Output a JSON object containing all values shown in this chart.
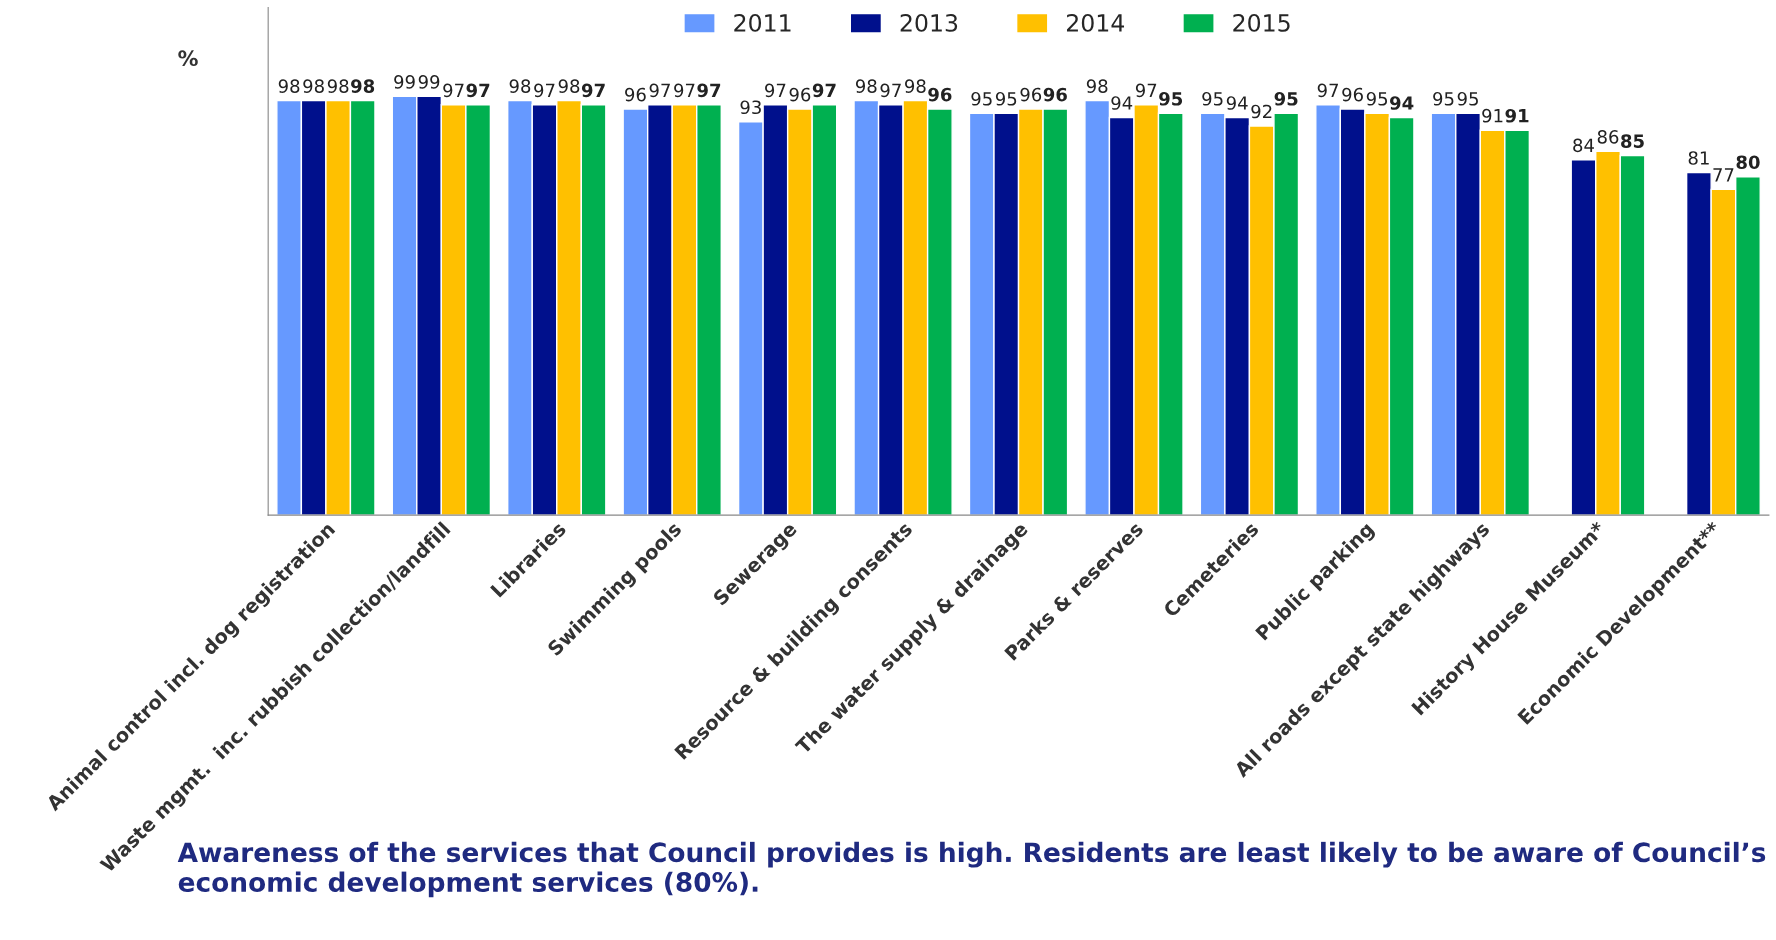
{
  "chart_data": {
    "type": "bar",
    "categories": [
      "Animal control incl. dog registration",
      "Waste mgmt.  inc. rubbish collection/landfill",
      "Libraries",
      "Swimming pools",
      "Sewerage",
      "Resource & building consents",
      "The water supply & drainage",
      "Parks & reserves",
      "Cemeteries",
      "Public parking",
      "All roads except state highways",
      "History House Museum*",
      "Economic Development**"
    ],
    "series": [
      {
        "name": "2011",
        "color": "#6699ff",
        "values": [
          98,
          99,
          98,
          96,
          93,
          98,
          95,
          98,
          95,
          97,
          95,
          null,
          null
        ]
      },
      {
        "name": "2013",
        "color": "#00108c",
        "values": [
          98,
          99,
          97,
          97,
          97,
          97,
          95,
          94,
          94,
          96,
          95,
          84,
          81
        ]
      },
      {
        "name": "2014",
        "color": "#ffc000",
        "values": [
          98,
          97,
          98,
          97,
          96,
          98,
          96,
          97,
          92,
          95,
          91,
          86,
          77
        ]
      },
      {
        "name": "2015",
        "color": "#00b050",
        "values": [
          98,
          97,
          97,
          97,
          97,
          96,
          96,
          95,
          95,
          94,
          91,
          85,
          80
        ]
      }
    ],
    "ylabel": "%",
    "ylim": [
      0,
      120
    ],
    "tick_labels": "x",
    "data_labels": true,
    "legend": "top",
    "grid": false,
    "annotations": [
      "Awareness of the services that Council provides is high. Residents are least likely to be aware of Council’s economic development services (80%)."
    ]
  }
}
